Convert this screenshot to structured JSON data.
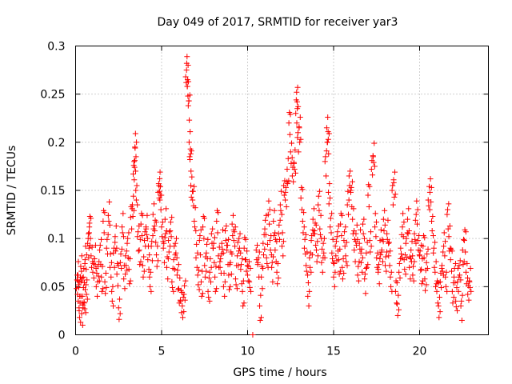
{
  "chart_data": {
    "type": "scatter",
    "title": "Day 049 of 2017, SRMTID for receiver yar3",
    "xlabel": "GPS time / hours",
    "ylabel": "SRMTID / TECUs",
    "xlim": [
      0,
      24
    ],
    "ylim": [
      0,
      0.3
    ],
    "xticks": [
      0,
      5,
      10,
      15,
      20
    ],
    "yticks": [
      0,
      0.05,
      0.1,
      0.15,
      0.2,
      0.25,
      0.3
    ],
    "xtick_labels": [
      "0",
      "5",
      "10",
      "15",
      "20"
    ],
    "ytick_labels": [
      "0",
      "0.05",
      "0.1",
      "0.15",
      "0.2",
      "0.25",
      "0.3"
    ],
    "grid": true,
    "marker": "+",
    "color": "#ff0000",
    "series": [
      {
        "name": "SRMTID",
        "points": [
          [
            0.05,
            0.048
          ],
          [
            0.1,
            0.062
          ],
          [
            0.15,
            0.035
          ],
          [
            0.2,
            0.028
          ],
          [
            0.25,
            0.055
          ],
          [
            0.3,
            0.071
          ],
          [
            0.35,
            0.022
          ],
          [
            0.4,
            0.04
          ],
          [
            0.45,
            0.06
          ],
          [
            0.5,
            0.033
          ],
          [
            0.55,
            0.078
          ],
          [
            0.6,
            0.052
          ],
          [
            0.7,
            0.095
          ],
          [
            0.75,
            0.105
          ],
          [
            0.8,
            0.112
          ],
          [
            0.9,
            0.082
          ],
          [
            1.0,
            0.065
          ],
          [
            1.1,
            0.079
          ],
          [
            1.2,
            0.05
          ],
          [
            1.3,
            0.071
          ],
          [
            1.4,
            0.088
          ],
          [
            1.5,
            0.06
          ],
          [
            1.6,
            0.118
          ],
          [
            1.7,
            0.055
          ],
          [
            1.8,
            0.09
          ],
          [
            1.9,
            0.124
          ],
          [
            2.0,
            0.07
          ],
          [
            2.1,
            0.045
          ],
          [
            2.2,
            0.085
          ],
          [
            2.3,
            0.102
          ],
          [
            2.4,
            0.063
          ],
          [
            2.5,
            0.028
          ],
          [
            2.6,
            0.075
          ],
          [
            2.7,
            0.112
          ],
          [
            2.8,
            0.058
          ],
          [
            2.9,
            0.082
          ],
          [
            3.0,
            0.095
          ],
          [
            3.1,
            0.068
          ],
          [
            3.2,
            0.122
          ],
          [
            3.3,
            0.135
          ],
          [
            3.35,
            0.167
          ],
          [
            3.4,
            0.18
          ],
          [
            3.45,
            0.195
          ],
          [
            3.5,
            0.15
          ],
          [
            3.6,
            0.102
          ],
          [
            3.7,
            0.088
          ],
          [
            3.8,
            0.115
          ],
          [
            3.9,
            0.072
          ],
          [
            4.0,
            0.098
          ],
          [
            4.1,
            0.11
          ],
          [
            4.2,
            0.078
          ],
          [
            4.3,
            0.06
          ],
          [
            4.4,
            0.092
          ],
          [
            4.5,
            0.125
          ],
          [
            4.6,
            0.108
          ],
          [
            4.7,
            0.083
          ],
          [
            4.8,
            0.148
          ],
          [
            4.85,
            0.155
          ],
          [
            4.9,
            0.14
          ],
          [
            5.0,
            0.112
          ],
          [
            5.1,
            0.09
          ],
          [
            5.2,
            0.12
          ],
          [
            5.3,
            0.07
          ],
          [
            5.4,
            0.098
          ],
          [
            5.5,
            0.108
          ],
          [
            5.6,
            0.055
          ],
          [
            5.7,
            0.078
          ],
          [
            5.8,
            0.095
          ],
          [
            5.9,
            0.062
          ],
          [
            6.0,
            0.048
          ],
          [
            6.1,
            0.035
          ],
          [
            6.2,
            0.03
          ],
          [
            6.3,
            0.042
          ],
          [
            6.4,
            0.268
          ],
          [
            6.45,
            0.275
          ],
          [
            6.5,
            0.258
          ],
          [
            6.55,
            0.238
          ],
          [
            6.6,
            0.2
          ],
          [
            6.65,
            0.182
          ],
          [
            6.7,
            0.155
          ],
          [
            6.8,
            0.14
          ],
          [
            6.9,
            0.118
          ],
          [
            7.0,
            0.08
          ],
          [
            7.1,
            0.062
          ],
          [
            7.2,
            0.098
          ],
          [
            7.3,
            0.055
          ],
          [
            7.4,
            0.112
          ],
          [
            7.5,
            0.072
          ],
          [
            7.6,
            0.085
          ],
          [
            7.7,
            0.045
          ],
          [
            7.8,
            0.065
          ],
          [
            7.9,
            0.105
          ],
          [
            8.0,
            0.09
          ],
          [
            8.1,
            0.06
          ],
          [
            8.2,
            0.118
          ],
          [
            8.3,
            0.082
          ],
          [
            8.4,
            0.07
          ],
          [
            8.5,
            0.095
          ],
          [
            8.6,
            0.05
          ],
          [
            8.7,
            0.108
          ],
          [
            8.8,
            0.088
          ],
          [
            8.9,
            0.062
          ],
          [
            9.0,
            0.075
          ],
          [
            9.1,
            0.115
          ],
          [
            9.2,
            0.098
          ],
          [
            9.3,
            0.058
          ],
          [
            9.4,
            0.082
          ],
          [
            9.5,
            0.1
          ],
          [
            9.6,
            0.068
          ],
          [
            9.7,
            0.045
          ],
          [
            9.8,
            0.09
          ],
          [
            9.9,
            0.078
          ],
          [
            10.0,
            0.062
          ],
          [
            10.1,
            0.055
          ],
          [
            10.3,
            0.0
          ],
          [
            10.5,
            0.088
          ],
          [
            10.6,
            0.075
          ],
          [
            10.7,
            0.03
          ],
          [
            10.8,
            0.06
          ],
          [
            10.9,
            0.095
          ],
          [
            11.0,
            0.11
          ],
          [
            11.1,
            0.08
          ],
          [
            11.2,
            0.125
          ],
          [
            11.3,
            0.098
          ],
          [
            11.4,
            0.07
          ],
          [
            11.5,
            0.118
          ],
          [
            11.6,
            0.088
          ],
          [
            11.7,
            0.065
          ],
          [
            11.8,
            0.105
          ],
          [
            11.9,
            0.135
          ],
          [
            12.0,
            0.092
          ],
          [
            12.1,
            0.155
          ],
          [
            12.2,
            0.148
          ],
          [
            12.3,
            0.172
          ],
          [
            12.4,
            0.22
          ],
          [
            12.5,
            0.19
          ],
          [
            12.6,
            0.165
          ],
          [
            12.7,
            0.178
          ],
          [
            12.8,
            0.23
          ],
          [
            12.85,
            0.252
          ],
          [
            12.9,
            0.205
          ],
          [
            13.0,
            0.215
          ],
          [
            13.1,
            0.142
          ],
          [
            13.2,
            0.118
          ],
          [
            13.3,
            0.09
          ],
          [
            13.4,
            0.072
          ],
          [
            13.5,
            0.04
          ],
          [
            13.6,
            0.08
          ],
          [
            13.7,
            0.098
          ],
          [
            13.8,
            0.12
          ],
          [
            13.9,
            0.105
          ],
          [
            14.0,
            0.088
          ],
          [
            14.1,
            0.135
          ],
          [
            14.2,
            0.11
          ],
          [
            14.3,
            0.075
          ],
          [
            14.4,
            0.095
          ],
          [
            14.5,
            0.18
          ],
          [
            14.6,
            0.215
          ],
          [
            14.65,
            0.2
          ],
          [
            14.7,
            0.148
          ],
          [
            14.8,
            0.112
          ],
          [
            14.9,
            0.085
          ],
          [
            15.0,
            0.06
          ],
          [
            15.1,
            0.092
          ],
          [
            15.2,
            0.102
          ],
          [
            15.3,
            0.078
          ],
          [
            15.4,
            0.115
          ],
          [
            15.5,
            0.07
          ],
          [
            15.6,
            0.098
          ],
          [
            15.7,
            0.082
          ],
          [
            15.8,
            0.135
          ],
          [
            15.9,
            0.165
          ],
          [
            16.0,
            0.148
          ],
          [
            16.1,
            0.12
          ],
          [
            16.2,
            0.088
          ],
          [
            16.3,
            0.105
          ],
          [
            16.4,
            0.062
          ],
          [
            16.5,
            0.095
          ],
          [
            16.6,
            0.075
          ],
          [
            16.7,
            0.115
          ],
          [
            16.8,
            0.058
          ],
          [
            16.9,
            0.085
          ],
          [
            17.0,
            0.145
          ],
          [
            17.1,
            0.098
          ],
          [
            17.2,
            0.172
          ],
          [
            17.3,
            0.185
          ],
          [
            17.4,
            0.112
          ],
          [
            17.5,
            0.08
          ],
          [
            17.6,
            0.068
          ],
          [
            17.7,
            0.098
          ],
          [
            17.8,
            0.088
          ],
          [
            17.9,
            0.12
          ],
          [
            18.0,
            0.072
          ],
          [
            18.1,
            0.105
          ],
          [
            18.2,
            0.082
          ],
          [
            18.3,
            0.06
          ],
          [
            18.4,
            0.15
          ],
          [
            18.5,
            0.158
          ],
          [
            18.6,
            0.045
          ],
          [
            18.7,
            0.032
          ],
          [
            18.8,
            0.065
          ],
          [
            18.9,
            0.09
          ],
          [
            19.0,
            0.112
          ],
          [
            19.1,
            0.078
          ],
          [
            19.2,
            0.095
          ],
          [
            19.3,
            0.12
          ],
          [
            19.4,
            0.07
          ],
          [
            19.5,
            0.088
          ],
          [
            19.6,
            0.062
          ],
          [
            19.7,
            0.105
          ],
          [
            19.8,
            0.125
          ],
          [
            19.9,
            0.098
          ],
          [
            20.0,
            0.082
          ],
          [
            20.1,
            0.068
          ],
          [
            20.2,
            0.092
          ],
          [
            20.3,
            0.058
          ],
          [
            20.4,
            0.075
          ],
          [
            20.5,
            0.14
          ],
          [
            20.6,
            0.148
          ],
          [
            20.7,
            0.118
          ],
          [
            20.8,
            0.085
          ],
          [
            20.9,
            0.065
          ],
          [
            21.0,
            0.045
          ],
          [
            21.1,
            0.03
          ],
          [
            21.2,
            0.055
          ],
          [
            21.3,
            0.072
          ],
          [
            21.4,
            0.092
          ],
          [
            21.5,
            0.06
          ],
          [
            21.6,
            0.125
          ],
          [
            21.7,
            0.102
          ],
          [
            21.8,
            0.078
          ],
          [
            21.9,
            0.045
          ],
          [
            22.0,
            0.06
          ],
          [
            22.1,
            0.035
          ],
          [
            22.2,
            0.055
          ],
          [
            22.3,
            0.072
          ],
          [
            22.4,
            0.03
          ],
          [
            22.5,
            0.088
          ],
          [
            22.6,
            0.098
          ],
          [
            22.7,
            0.065
          ],
          [
            22.8,
            0.042
          ],
          [
            22.9,
            0.055
          ]
        ]
      }
    ]
  }
}
